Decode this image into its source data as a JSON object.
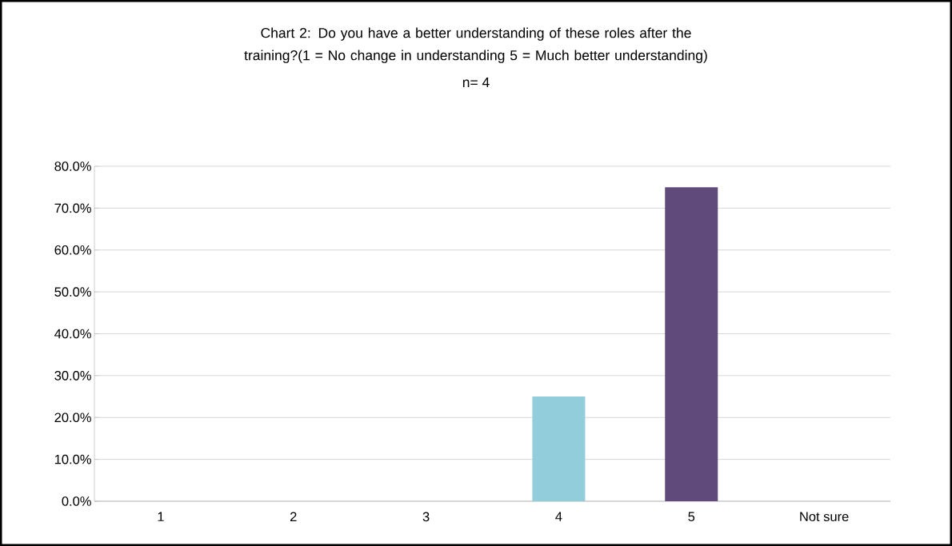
{
  "chart_data": {
    "type": "bar",
    "title": "Chart 2: Do you have a better understanding of these roles after the training?(1 = No change in understanding   5 = Much better understanding)",
    "subtitle": "n= 4",
    "categories": [
      "1",
      "2",
      "3",
      "4",
      "5",
      "Not sure"
    ],
    "values": [
      0,
      0,
      0,
      25,
      75,
      0
    ],
    "colors": [
      "#4f81bd",
      "#c0504d",
      "#9bbb59",
      "#92cddc",
      "#604a7b",
      "#4bacc6"
    ],
    "ylim": [
      0,
      80
    ],
    "yticks": [
      {
        "value": 0,
        "label": "0.0%"
      },
      {
        "value": 10,
        "label": "10.0%"
      },
      {
        "value": 20,
        "label": "20.0%"
      },
      {
        "value": 30,
        "label": "30.0%"
      },
      {
        "value": 40,
        "label": "40.0%"
      },
      {
        "value": 50,
        "label": "50.0%"
      },
      {
        "value": 60,
        "label": "60.0%"
      },
      {
        "value": 70,
        "label": "70.0%"
      },
      {
        "value": 80,
        "label": "80.0%"
      }
    ],
    "grid": "y"
  }
}
